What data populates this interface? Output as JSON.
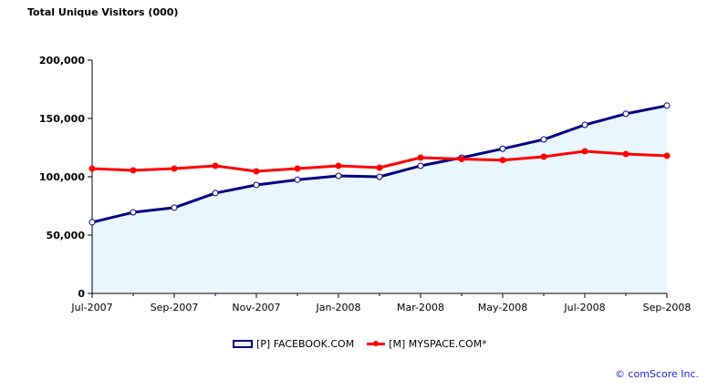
{
  "chart_data": {
    "type": "line",
    "title": "Total Unique Visitors (000)",
    "xlabel": "",
    "ylabel": "",
    "ylim": [
      0,
      200000
    ],
    "yticks": [
      "0",
      "50,000",
      "100,000",
      "150,000",
      "200,000"
    ],
    "ytick_values": [
      0,
      50000,
      100000,
      150000,
      200000
    ],
    "categories": [
      "Jul-2007",
      "Aug-2007",
      "Sep-2007",
      "Oct-2007",
      "Nov-2007",
      "Dec-2007",
      "Jan-2008",
      "Feb-2008",
      "Mar-2008",
      "Apr-2008",
      "May-2008",
      "Jun-2008",
      "Jul-2008",
      "Aug-2008",
      "Sep-2008"
    ],
    "xtick_labels": [
      "Jul-2007",
      "Sep-2007",
      "Nov-2007",
      "Jan-2008",
      "Mar-2008",
      "May-2008",
      "Jul-2008",
      "Sep-2008"
    ],
    "series": [
      {
        "name": "[P] FACEBOOK.COM",
        "color": "#000080",
        "fill": "#eaf6fd",
        "values": [
          61000,
          69500,
          73500,
          86000,
          93000,
          97500,
          100800,
          100000,
          109400,
          116400,
          124000,
          132000,
          144500,
          154000,
          161000
        ]
      },
      {
        "name": "[M] MYSPACE.COM*",
        "color": "#ff0000",
        "values": [
          107000,
          105500,
          107000,
          109400,
          104700,
          107000,
          109400,
          107800,
          116400,
          115200,
          114300,
          117200,
          121900,
          119500,
          118000
        ]
      }
    ],
    "legend": "bottom-center"
  },
  "credit": "© comScore Inc."
}
